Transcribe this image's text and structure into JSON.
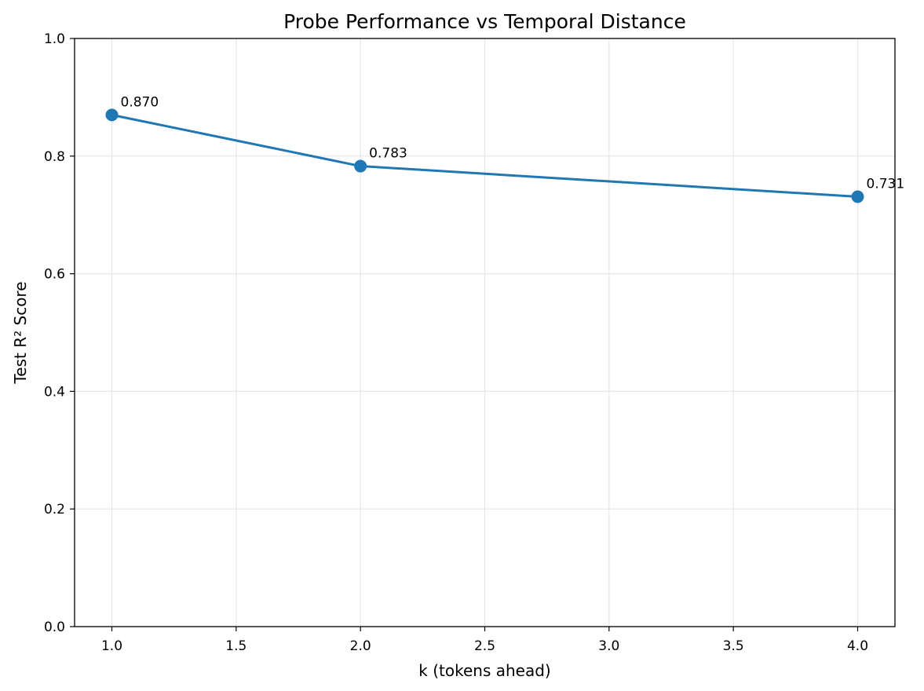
{
  "chart_data": {
    "type": "line",
    "title": "Probe Performance vs Temporal Distance",
    "xlabel": "k (tokens ahead)",
    "ylabel": "Test R² Score",
    "xlim": [
      0.85,
      4.15
    ],
    "ylim": [
      0.0,
      1.0
    ],
    "xticks": [
      "1.0",
      "1.5",
      "2.0",
      "2.5",
      "3.0",
      "3.5",
      "4.0"
    ],
    "yticks": [
      "0.0",
      "0.2",
      "0.4",
      "0.6",
      "0.8",
      "1.0"
    ],
    "grid": true,
    "series": [
      {
        "x": [
          1,
          2,
          4
        ],
        "y": [
          0.87,
          0.783,
          0.731
        ],
        "labels": [
          "0.870",
          "0.783",
          "0.731"
        ],
        "color": "#1f77b4",
        "marker": "circle"
      }
    ]
  }
}
